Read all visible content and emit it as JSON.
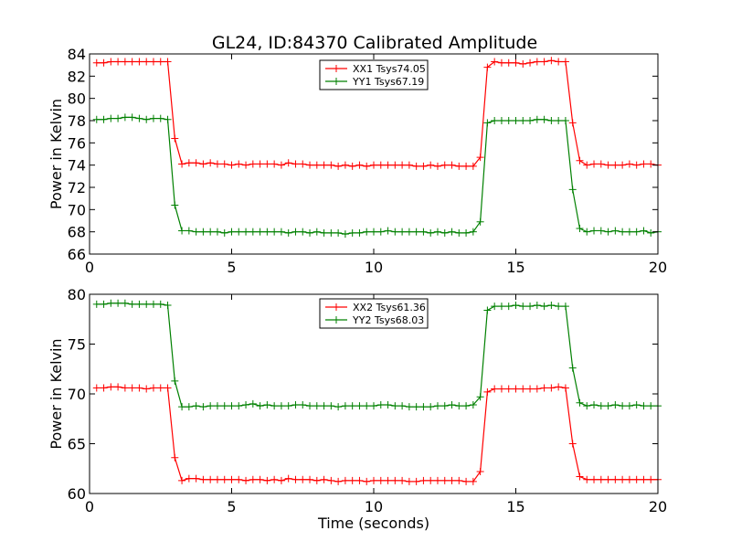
{
  "title": "GL24, ID:84370 Calibrated Amplitude",
  "colors": {
    "series1": "#ff0000",
    "series2": "#008000"
  },
  "chart_data": [
    {
      "type": "line",
      "title": "GL24, ID:84370 Calibrated Amplitude",
      "xlabel": "",
      "ylabel": "Power in Kelvin",
      "xlim": [
        0,
        20
      ],
      "ylim": [
        66,
        84
      ],
      "xticks": [
        "0",
        "5",
        "10",
        "15",
        "20"
      ],
      "yticks": [
        "66",
        "68",
        "70",
        "72",
        "74",
        "76",
        "78",
        "80",
        "82",
        "84"
      ],
      "legend_position": "top-center",
      "grid": false,
      "series": [
        {
          "name": "XX1 Tsys74.05",
          "color": "#ff0000",
          "x": [
            0.25,
            0.5,
            0.75,
            1.0,
            1.25,
            1.5,
            1.75,
            2.0,
            2.25,
            2.5,
            2.75,
            3.0,
            3.25,
            3.5,
            3.75,
            4.0,
            4.25,
            4.5,
            4.75,
            5.0,
            5.25,
            5.5,
            5.75,
            6.0,
            6.25,
            6.5,
            6.75,
            7.0,
            7.25,
            7.5,
            7.75,
            8.0,
            8.25,
            8.5,
            8.75,
            9.0,
            9.25,
            9.5,
            9.75,
            10.0,
            10.25,
            10.5,
            10.75,
            11.0,
            11.25,
            11.5,
            11.75,
            12.0,
            12.25,
            12.5,
            12.75,
            13.0,
            13.25,
            13.5,
            13.75,
            14.0,
            14.25,
            14.5,
            14.75,
            15.0,
            15.25,
            15.5,
            15.75,
            16.0,
            16.25,
            16.5,
            16.75,
            17.0,
            17.25,
            17.5,
            17.75,
            18.0,
            18.25,
            18.5,
            18.75,
            19.0,
            19.25,
            19.5,
            19.75,
            20.0
          ],
          "y": [
            83.2,
            83.2,
            83.3,
            83.3,
            83.3,
            83.3,
            83.3,
            83.3,
            83.3,
            83.3,
            83.3,
            76.4,
            74.1,
            74.2,
            74.2,
            74.1,
            74.2,
            74.1,
            74.1,
            74.0,
            74.1,
            74.0,
            74.1,
            74.1,
            74.1,
            74.1,
            74.0,
            74.2,
            74.1,
            74.1,
            74.0,
            74.0,
            74.0,
            74.0,
            73.9,
            74.0,
            73.9,
            74.0,
            73.9,
            74.0,
            74.0,
            74.0,
            74.0,
            74.0,
            74.0,
            73.9,
            73.9,
            74.0,
            73.9,
            74.0,
            74.0,
            73.9,
            73.9,
            73.9,
            74.7,
            82.8,
            83.3,
            83.2,
            83.2,
            83.2,
            83.1,
            83.2,
            83.3,
            83.3,
            83.4,
            83.3,
            83.3,
            77.8,
            74.4,
            74.0,
            74.1,
            74.1,
            74.0,
            74.0,
            74.0,
            74.1,
            74.0,
            74.1,
            74.1,
            74.0
          ]
        },
        {
          "name": "YY1 Tsys67.19",
          "color": "#008000",
          "x": [
            0.25,
            0.5,
            0.75,
            1.0,
            1.25,
            1.5,
            1.75,
            2.0,
            2.25,
            2.5,
            2.75,
            3.0,
            3.25,
            3.5,
            3.75,
            4.0,
            4.25,
            4.5,
            4.75,
            5.0,
            5.25,
            5.5,
            5.75,
            6.0,
            6.25,
            6.5,
            6.75,
            7.0,
            7.25,
            7.5,
            7.75,
            8.0,
            8.25,
            8.5,
            8.75,
            9.0,
            9.25,
            9.5,
            9.75,
            10.0,
            10.25,
            10.5,
            10.75,
            11.0,
            11.25,
            11.5,
            11.75,
            12.0,
            12.25,
            12.5,
            12.75,
            13.0,
            13.25,
            13.5,
            13.75,
            14.0,
            14.25,
            14.5,
            14.75,
            15.0,
            15.25,
            15.5,
            15.75,
            16.0,
            16.25,
            16.5,
            16.75,
            17.0,
            17.25,
            17.5,
            17.75,
            18.0,
            18.25,
            18.5,
            18.75,
            19.0,
            19.25,
            19.5,
            19.75,
            20.0
          ],
          "y": [
            78.1,
            78.1,
            78.2,
            78.2,
            78.3,
            78.3,
            78.2,
            78.1,
            78.2,
            78.2,
            78.1,
            70.4,
            68.1,
            68.1,
            68.0,
            68.0,
            68.0,
            68.0,
            67.9,
            68.0,
            68.0,
            68.0,
            68.0,
            68.0,
            68.0,
            68.0,
            68.0,
            67.9,
            68.0,
            68.0,
            67.9,
            68.0,
            67.9,
            67.9,
            67.9,
            67.8,
            67.9,
            67.9,
            68.0,
            68.0,
            68.0,
            68.1,
            68.0,
            68.0,
            68.0,
            68.0,
            68.0,
            67.9,
            68.0,
            67.9,
            68.0,
            67.9,
            67.9,
            68.0,
            68.9,
            77.8,
            78.0,
            78.0,
            78.0,
            78.0,
            78.0,
            78.0,
            78.1,
            78.1,
            78.0,
            78.0,
            78.0,
            71.8,
            68.3,
            68.0,
            68.1,
            68.1,
            68.0,
            68.1,
            68.0,
            68.0,
            68.0,
            68.1,
            67.9,
            68.0
          ]
        }
      ]
    },
    {
      "type": "line",
      "title": "",
      "xlabel": "Time (seconds)",
      "ylabel": "Power in Kelvin",
      "xlim": [
        0,
        20
      ],
      "ylim": [
        60,
        80
      ],
      "xticks": [
        "0",
        "5",
        "10",
        "15",
        "20"
      ],
      "yticks": [
        "60",
        "65",
        "70",
        "75",
        "80"
      ],
      "legend_position": "top-center",
      "grid": false,
      "series": [
        {
          "name": "XX2 Tsys61.36",
          "color": "#ff0000",
          "x": [
            0.25,
            0.5,
            0.75,
            1.0,
            1.25,
            1.5,
            1.75,
            2.0,
            2.25,
            2.5,
            2.75,
            3.0,
            3.25,
            3.5,
            3.75,
            4.0,
            4.25,
            4.5,
            4.75,
            5.0,
            5.25,
            5.5,
            5.75,
            6.0,
            6.25,
            6.5,
            6.75,
            7.0,
            7.25,
            7.5,
            7.75,
            8.0,
            8.25,
            8.5,
            8.75,
            9.0,
            9.25,
            9.5,
            9.75,
            10.0,
            10.25,
            10.5,
            10.75,
            11.0,
            11.25,
            11.5,
            11.75,
            12.0,
            12.25,
            12.5,
            12.75,
            13.0,
            13.25,
            13.5,
            13.75,
            14.0,
            14.25,
            14.5,
            14.75,
            15.0,
            15.25,
            15.5,
            15.75,
            16.0,
            16.25,
            16.5,
            16.75,
            17.0,
            17.25,
            17.5,
            17.75,
            18.0,
            18.25,
            18.5,
            18.75,
            19.0,
            19.25,
            19.5,
            19.75,
            20.0
          ],
          "y": [
            70.6,
            70.6,
            70.7,
            70.7,
            70.6,
            70.6,
            70.6,
            70.5,
            70.6,
            70.6,
            70.6,
            63.6,
            61.3,
            61.5,
            61.5,
            61.4,
            61.4,
            61.4,
            61.4,
            61.4,
            61.4,
            61.3,
            61.4,
            61.4,
            61.3,
            61.4,
            61.3,
            61.5,
            61.4,
            61.4,
            61.4,
            61.3,
            61.4,
            61.3,
            61.2,
            61.3,
            61.3,
            61.3,
            61.2,
            61.3,
            61.3,
            61.3,
            61.3,
            61.3,
            61.2,
            61.2,
            61.3,
            61.3,
            61.3,
            61.3,
            61.3,
            61.3,
            61.2,
            61.2,
            62.2,
            70.2,
            70.5,
            70.5,
            70.5,
            70.5,
            70.5,
            70.5,
            70.5,
            70.6,
            70.6,
            70.7,
            70.6,
            65.0,
            61.7,
            61.4,
            61.4,
            61.4,
            61.4,
            61.4,
            61.4,
            61.4,
            61.4,
            61.4,
            61.4,
            61.4
          ]
        },
        {
          "name": "YY2 Tsys68.03",
          "color": "#008000",
          "x": [
            0.25,
            0.5,
            0.75,
            1.0,
            1.25,
            1.5,
            1.75,
            2.0,
            2.25,
            2.5,
            2.75,
            3.0,
            3.25,
            3.5,
            3.75,
            4.0,
            4.25,
            4.5,
            4.75,
            5.0,
            5.25,
            5.5,
            5.75,
            6.0,
            6.25,
            6.5,
            6.75,
            7.0,
            7.25,
            7.5,
            7.75,
            8.0,
            8.25,
            8.5,
            8.75,
            9.0,
            9.25,
            9.5,
            9.75,
            10.0,
            10.25,
            10.5,
            10.75,
            11.0,
            11.25,
            11.5,
            11.75,
            12.0,
            12.25,
            12.5,
            12.75,
            13.0,
            13.25,
            13.5,
            13.75,
            14.0,
            14.25,
            14.5,
            14.75,
            15.0,
            15.25,
            15.5,
            15.75,
            16.0,
            16.25,
            16.5,
            16.75,
            17.0,
            17.25,
            17.5,
            17.75,
            18.0,
            18.25,
            18.5,
            18.75,
            19.0,
            19.25,
            19.5,
            19.75,
            20.0
          ],
          "y": [
            79.0,
            79.0,
            79.1,
            79.1,
            79.1,
            79.0,
            79.0,
            79.0,
            79.0,
            79.0,
            78.9,
            71.3,
            68.7,
            68.7,
            68.8,
            68.7,
            68.8,
            68.8,
            68.8,
            68.8,
            68.8,
            68.9,
            69.0,
            68.8,
            68.9,
            68.8,
            68.8,
            68.8,
            68.9,
            68.9,
            68.8,
            68.8,
            68.8,
            68.8,
            68.7,
            68.8,
            68.8,
            68.8,
            68.8,
            68.8,
            68.9,
            68.9,
            68.8,
            68.8,
            68.7,
            68.7,
            68.7,
            68.7,
            68.8,
            68.8,
            68.9,
            68.8,
            68.8,
            68.9,
            69.7,
            78.4,
            78.8,
            78.8,
            78.8,
            78.9,
            78.8,
            78.8,
            78.9,
            78.8,
            78.9,
            78.8,
            78.8,
            72.6,
            69.1,
            68.8,
            68.9,
            68.8,
            68.8,
            68.9,
            68.8,
            68.8,
            68.9,
            68.8,
            68.8,
            68.8
          ]
        }
      ]
    }
  ]
}
